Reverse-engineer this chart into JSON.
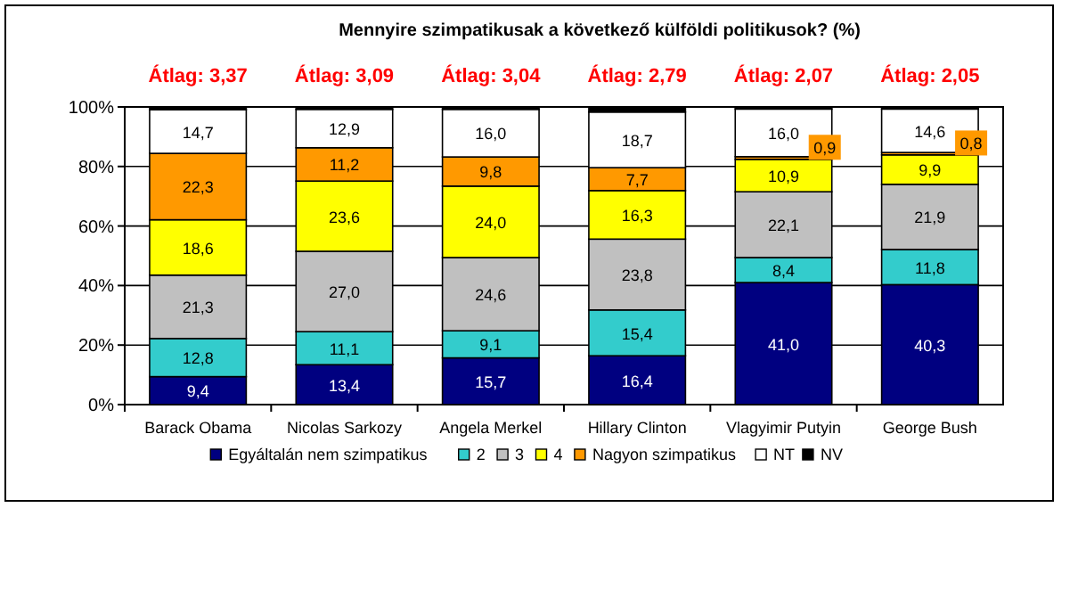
{
  "chart_data": {
    "type": "bar",
    "stacked": true,
    "title": "Mennyire szimpatikusak  a következő külföldi politikusok? (%)",
    "categories": [
      "Barack Obama",
      "Nicolas Sarkozy",
      "Angela Merkel",
      "Hillary Clinton",
      "Vlagyimir Putyin",
      "George Bush"
    ],
    "series": [
      {
        "name": "Egyáltalán nem szimpatikus",
        "color": "#000080",
        "values": [
          9.4,
          13.4,
          15.7,
          16.4,
          41.0,
          40.3
        ],
        "value_labels": [
          "9,4",
          "13,4",
          "15,7",
          "16,4",
          "41,0",
          "40,3"
        ]
      },
      {
        "name": "2",
        "color": "#33cccc",
        "values": [
          12.8,
          11.1,
          9.1,
          15.4,
          8.4,
          11.8
        ],
        "value_labels": [
          "12,8",
          "11,1",
          "9,1",
          "15,4",
          "8,4",
          "11,8"
        ]
      },
      {
        "name": "3",
        "color": "#c0c0c0",
        "values": [
          21.3,
          27.0,
          24.6,
          23.8,
          22.1,
          21.9
        ],
        "value_labels": [
          "21,3",
          "27,0",
          "24,6",
          "23,8",
          "22,1",
          "21,9"
        ]
      },
      {
        "name": "4",
        "color": "#ffff00",
        "values": [
          18.6,
          23.6,
          24.0,
          16.3,
          10.9,
          9.9
        ],
        "value_labels": [
          "18,6",
          "23,6",
          "24,0",
          "16,3",
          "10,9",
          "9,9"
        ]
      },
      {
        "name": "Nagyon szimpatikus",
        "color": "#ff9900",
        "values": [
          22.3,
          11.2,
          9.8,
          7.7,
          0.9,
          0.8
        ],
        "value_labels": [
          "22,3",
          "11,2",
          "9,8",
          "7,7",
          "0,9",
          "0,8"
        ]
      },
      {
        "name": "NT",
        "color": "#ffffff",
        "values": [
          14.7,
          12.9,
          16.0,
          18.7,
          16.0,
          14.6
        ],
        "value_labels": [
          "14,7",
          "12,9",
          "16,0",
          "18,7",
          "16,0",
          "14,6"
        ]
      },
      {
        "name": "NV",
        "color": "#000000",
        "values": [
          0.9,
          0.8,
          0.8,
          1.7,
          0.7,
          0.7
        ]
      }
    ],
    "annotations": [
      "Átlag: 3,37",
      "Átlag: 3,09",
      "Átlag: 3,04",
      "Átlag: 2,79",
      "Átlag: 2,07",
      "Átlag: 2,05"
    ],
    "ylim": [
      0,
      100
    ],
    "yticks": [
      {
        "value": 0,
        "label": "0%"
      },
      {
        "value": 20,
        "label": "20%"
      },
      {
        "value": 40,
        "label": "40%"
      },
      {
        "value": 60,
        "label": "60%"
      },
      {
        "value": 80,
        "label": "80%"
      },
      {
        "value": 100,
        "label": "100%"
      }
    ],
    "grid": "y",
    "legend": "bottom"
  }
}
